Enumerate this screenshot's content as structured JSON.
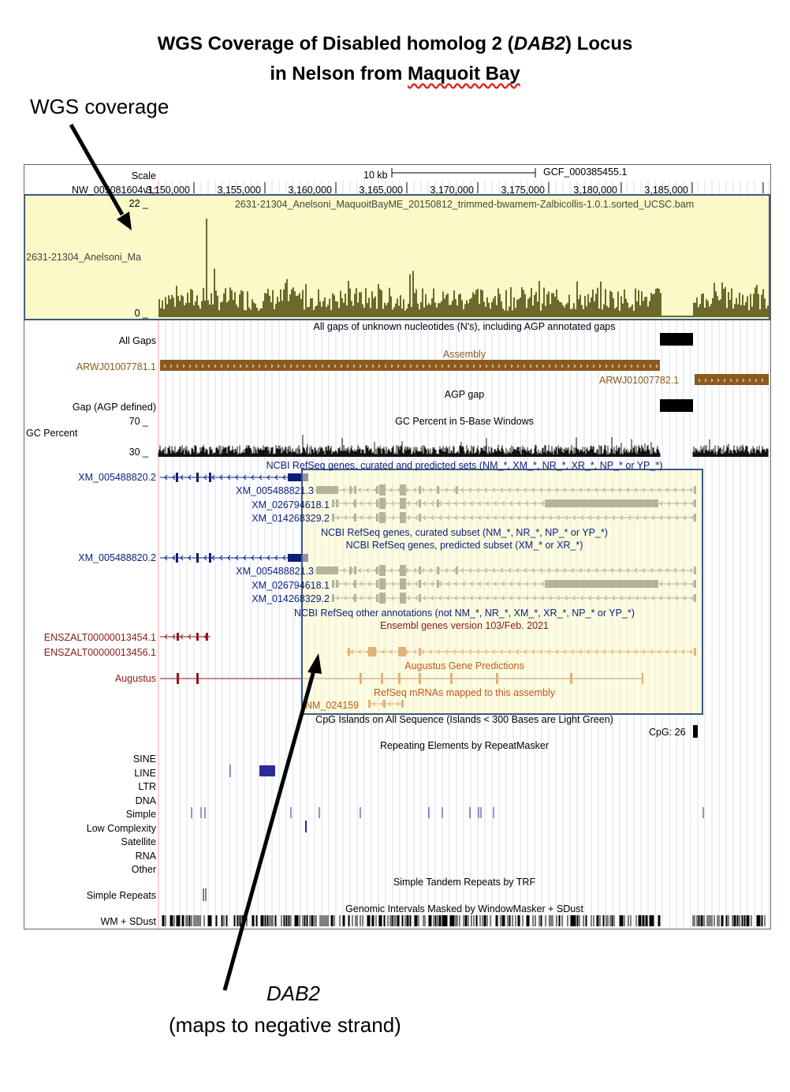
{
  "title": {
    "line1_pre": "WGS Coverage of Disabled homolog 2 (",
    "line1_italic": "DAB2",
    "line1_post": ") Locus",
    "line2_pre": "in Nelson from ",
    "line2_underlined": "Maquoit Bay"
  },
  "annotations": {
    "wgs_label": "WGS coverage",
    "gene_label": "DAB2",
    "strand_note": "(maps to negative strand)"
  },
  "colors": {
    "coverage_bg": "#fbf9c7",
    "coverage_bars": "#6b6a2a",
    "highlight_border": "#3a5a80",
    "assembly": "#8b5a1e",
    "refseq_blue": "#0b1f78",
    "refseq_grey": "#5a5f66",
    "ensembl_red": "#8b1a1a",
    "augustus": "#c05a1a",
    "repeat_blue": "#2b2b9a"
  },
  "browser": {
    "scale_label": "Scale",
    "scale_bar": "10 kb",
    "assembly_id": "GCF_000385455.1",
    "chrom_label": "NW_005081604v1:",
    "positions": [
      "3,150,000",
      "3,155,000",
      "3,160,000",
      "3,165,000",
      "3,170,000",
      "3,175,000",
      "3,180,000",
      "3,185,000"
    ],
    "coverage": {
      "ymax": "22 _",
      "ymin": "0 _",
      "track_title": "2631-21304_Anelsoni_MaquoitBayME_20150812_trimmed-bwamem-Zalbicollis-1.0.1.sorted_UCSC.bam",
      "side_label": "2631-21304_Anelsoni_Ma"
    },
    "gaps": {
      "title": "All gaps of unknown nucleotides (N's), including AGP annotated gaps",
      "label": "All Gaps"
    },
    "assembly_track": {
      "title": "Assembly",
      "contig1": "ARWJ01007781.1",
      "contig2": "ARWJ01007782.1"
    },
    "agp": {
      "title": "AGP gap",
      "label": "Gap (AGP defined)"
    },
    "gc": {
      "title": "GC Percent in 5-Base Windows",
      "label": "GC Percent",
      "ymax": "70 _",
      "ymin": "30 _"
    },
    "refseq": {
      "title_all": "NCBI RefSeq genes, curated and predicted sets (NM_*, XM_*, NR_*, XR_*, NP_* or YP_*)",
      "title_curated": "NCBI RefSeq genes, curated subset (NM_*, NR_*, NP_* or YP_*)",
      "title_predicted": "NCBI RefSeq genes, predicted subset (XM_* or XR_*)",
      "title_other": "NCBI RefSeq other annotations (not NM_*, NR_*, XM_*, XR_*, NP_* or YP_*)",
      "tx1": "XM_005488820.2",
      "tx2": "XM_005488821.3",
      "tx3": "XM_026794618.1",
      "tx4": "XM_014268329.2"
    },
    "ensembl": {
      "title": "Ensembl genes version 103/Feb. 2021",
      "tx1": "ENSZALT00000013454.1",
      "tx2": "ENSZALT00000013456.1"
    },
    "augustus": {
      "title": "Augustus Gene Predictions",
      "label": "Augustus"
    },
    "mrna": {
      "title": "RefSeq mRNAs mapped to this assembly",
      "item": "NM_024159"
    },
    "cpg": {
      "title": "CpG Islands on All Sequence (Islands < 300 Bases are Light Green)",
      "item": "CpG: 26"
    },
    "repeatmasker": {
      "title": "Repeating Elements by RepeatMasker",
      "classes": [
        "SINE",
        "LINE",
        "LTR",
        "DNA",
        "Simple",
        "Low Complexity",
        "Satellite",
        "RNA",
        "Other"
      ]
    },
    "trf": {
      "title": "Simple Tandem Repeats by TRF",
      "label": "Simple Repeats"
    },
    "windowmasker": {
      "title": "Genomic Intervals Masked by WindowMasker + SDust",
      "label": "WM + SDust"
    }
  }
}
